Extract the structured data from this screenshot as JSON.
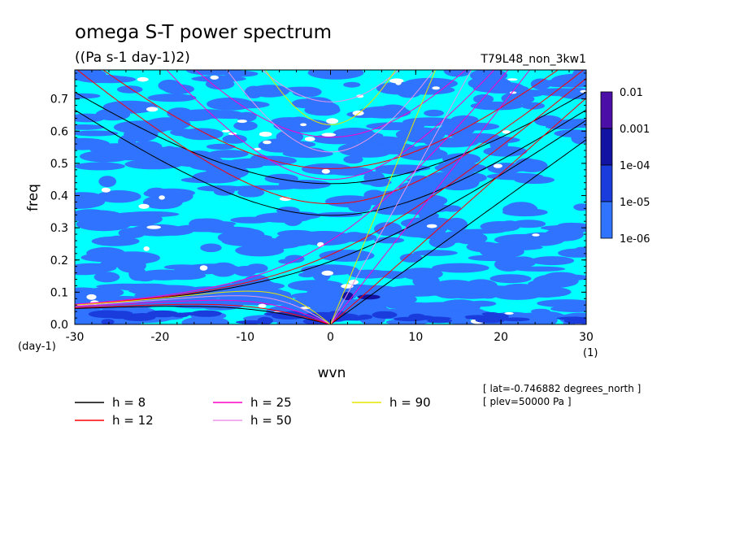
{
  "chart_data": {
    "type": "heatmap",
    "title": "omega S-T power spectrum",
    "subtitle": "((Pa s-1 day-1)2)",
    "run_label": "T79L48_non_3kw1",
    "xlabel": "wvn",
    "ylabel": "freq",
    "x_unit": "(1)",
    "y_unit": "(day-1)",
    "xlim": [
      -30,
      30
    ],
    "ylim": [
      0,
      0.79
    ],
    "xticks": [
      "-30",
      "-20",
      "-10",
      "0",
      "10",
      "20",
      "30"
    ],
    "xtick_values": [
      -30,
      -20,
      -10,
      0,
      10,
      20,
      30
    ],
    "yticks": [
      "0.0",
      "0.1",
      "0.2",
      "0.3",
      "0.4",
      "0.5",
      "0.6",
      "0.7"
    ],
    "ytick_values": [
      0,
      0.1,
      0.2,
      0.3,
      0.4,
      0.5,
      0.6,
      0.7
    ],
    "colorbar": {
      "labels": [
        "0.01",
        "0.001",
        "1e-04",
        "1e-05",
        "1e-06"
      ],
      "colors": [
        "#4b0fa8",
        "#1212a3",
        "#1a3cdc",
        "#2f73ff",
        "#00ffff"
      ]
    },
    "field_colors": {
      "low": "#00ffff",
      "mid": "#2f73ff",
      "high": "#1a3cdc",
      "peak": "#1212a3",
      "none": "#ffffff"
    },
    "dispersion_curves": [
      {
        "name": "h =  8",
        "h": 8,
        "color": "#000000"
      },
      {
        "name": "h = 12",
        "h": 12,
        "color": "#ff0000"
      },
      {
        "name": "h = 25",
        "h": 25,
        "color": "#ff00c8"
      },
      {
        "name": "h = 50",
        "h": 50,
        "color": "#e896e8"
      },
      {
        "name": "h = 90",
        "h": 90,
        "color": "#e6e600"
      }
    ],
    "annotations": [
      "[ lat=-0.746882 degrees_north ]",
      "[ plev=50000 Pa ]"
    ]
  }
}
